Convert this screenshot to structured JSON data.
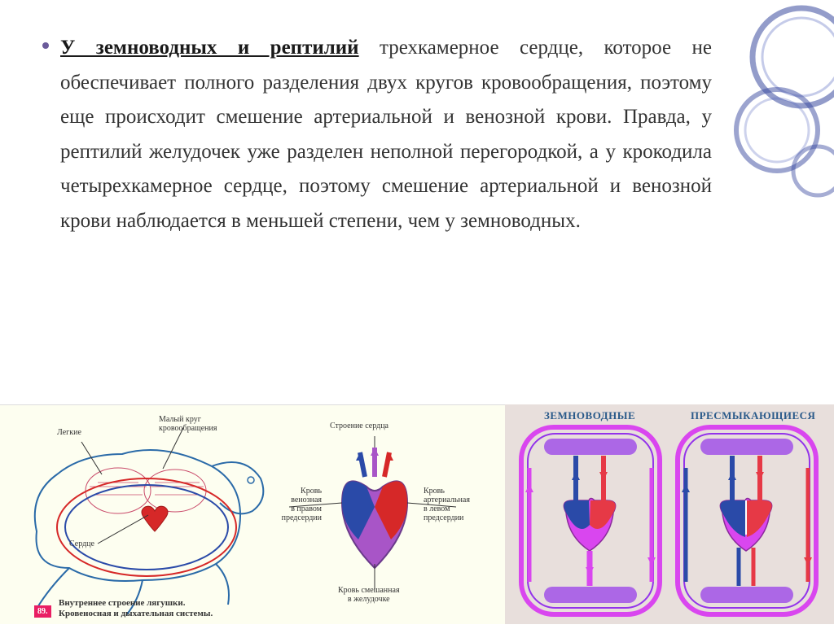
{
  "paragraph": {
    "lead": "У земноводных и рептилий",
    "body": " трехкамерное сердце, которое не обеспечивает полного разделения двух кругов кровообращения, поэтому еще происходит смешение артериальной и венозной крови. Правда, у рептилий желудочек уже разделен неполной перегородкой, а у крокодила четырехкамерное сердце, поэтому смешение артериальной и венозной крови наблюдается в меньшей степени, чем у земноводных."
  },
  "figure_left": {
    "caption_num": "89.",
    "caption_line1": "Внутреннее строение лягушки.",
    "caption_line2": "Кровеносная и дыхательная системы.",
    "labels": {
      "lungs": "Легкие",
      "small_circuit": "Малый круг\nкровообращения",
      "heart_structure": "Строение сердца",
      "heart": "Сердце",
      "venous_blood": "Кровь\nвенозная\nв правом\nпредсердии",
      "arterial_blood": "Кровь\nартериальная\nв левом\nпредсердии",
      "mixed_blood": "Кровь смешанная\nв желудочке"
    },
    "colors": {
      "outline": "#2a6aa8",
      "artery": "#d62828",
      "vein": "#2a4aa8",
      "mixed": "#a855c7",
      "lung_net": "#c94a6a"
    }
  },
  "figure_right": {
    "label_amphibian": "ЗЕМНОВОДНЫЕ",
    "label_reptile": "ПРЕСМЫКАЮЩИЕСЯ",
    "colors": {
      "artery": "#e63946",
      "vein": "#2a4aa8",
      "mixed": "#d946ef",
      "capillary": "#9333ea",
      "heart_fill_r": "#e63946",
      "heart_fill_l": "#2a4aa8",
      "bg": "#e8dfdc"
    }
  },
  "deco_color": "#3a4a9f"
}
